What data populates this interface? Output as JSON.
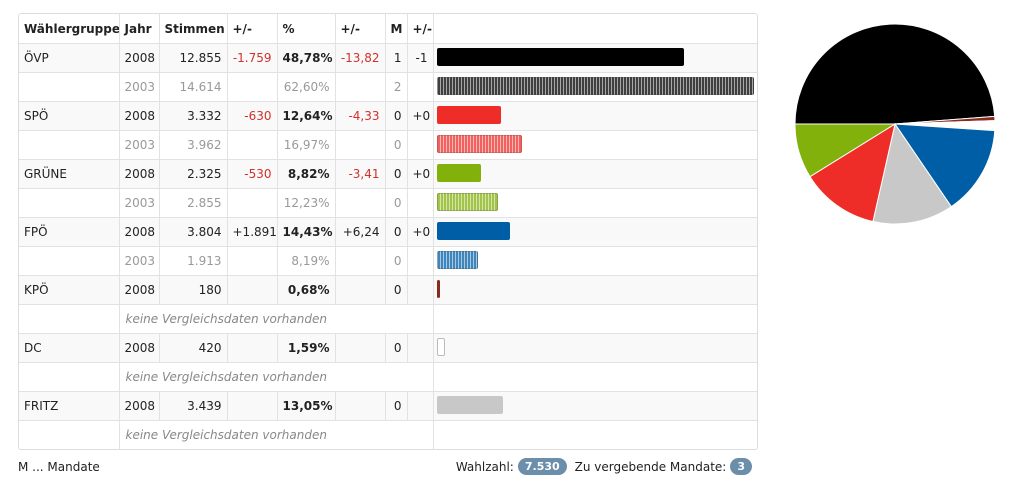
{
  "table": {
    "headers": [
      "Wählergruppe",
      "Jahr",
      "Stimmen",
      "+/-",
      "%",
      "+/-",
      "M",
      "+/-",
      ""
    ],
    "no_data_text": "keine Vergleichsdaten vorhanden"
  },
  "footer": {
    "legend": "M ... Mandate",
    "wahlzahl_label": "Wahlzahl:",
    "wahlzahl_value": "7.530",
    "mandate_label": "Zu vergebende Mandate:",
    "mandate_value": "3"
  },
  "chart_data": {
    "type": "bar",
    "bar_max_percent": 62.6,
    "parties": [
      {
        "name": "ÖVP",
        "color": "#000000",
        "current": {
          "year": "2008",
          "votes": "12.855",
          "votes_diff": "-1.759",
          "percent_label": "48,78%",
          "percent_diff": "-13,82",
          "seats": "1",
          "seats_diff": "-1",
          "percent": 48.78
        },
        "previous": {
          "year": "2003",
          "votes": "14.614",
          "percent_label": "62,60%",
          "seats": "2",
          "percent": 62.6
        }
      },
      {
        "name": "SPÖ",
        "color": "#ee2d28",
        "current": {
          "year": "2008",
          "votes": "3.332",
          "votes_diff": "-630",
          "percent_label": "12,64%",
          "percent_diff": "-4,33",
          "seats": "0",
          "seats_diff": "+0",
          "percent": 12.64
        },
        "previous": {
          "year": "2003",
          "votes": "3.962",
          "percent_label": "16,97%",
          "seats": "0",
          "percent": 16.97
        }
      },
      {
        "name": "GRÜNE",
        "color": "#83b10b",
        "current": {
          "year": "2008",
          "votes": "2.325",
          "votes_diff": "-530",
          "percent_label": "8,82%",
          "percent_diff": "-3,41",
          "seats": "0",
          "seats_diff": "+0",
          "percent": 8.82
        },
        "previous": {
          "year": "2003",
          "votes": "2.855",
          "percent_label": "12,23%",
          "seats": "0",
          "percent": 12.23
        }
      },
      {
        "name": "FPÖ",
        "color": "#005ea6",
        "current": {
          "year": "2008",
          "votes": "3.804",
          "votes_diff": "+1.891",
          "percent_label": "14,43%",
          "percent_diff": "+6,24",
          "seats": "0",
          "seats_diff": "+0",
          "percent": 14.43
        },
        "previous": {
          "year": "2003",
          "votes": "1.913",
          "percent_label": "8,19%",
          "seats": "0",
          "percent": 8.19
        }
      },
      {
        "name": "KPÖ",
        "color": "#8a2a1f",
        "current": {
          "year": "2008",
          "votes": "180",
          "votes_diff": "",
          "percent_label": "0,68%",
          "percent_diff": "",
          "seats": "0",
          "seats_diff": "",
          "percent": 0.68
        },
        "previous": null
      },
      {
        "name": "DC",
        "color": "#ffffff",
        "current": {
          "year": "2008",
          "votes": "420",
          "votes_diff": "",
          "percent_label": "1,59%",
          "percent_diff": "",
          "seats": "0",
          "seats_diff": "",
          "percent": 1.59
        },
        "previous": null
      },
      {
        "name": "FRITZ",
        "color": "#c8c8c8",
        "current": {
          "year": "2008",
          "votes": "3.439",
          "votes_diff": "",
          "percent_label": "13,05%",
          "percent_diff": "",
          "seats": "0",
          "seats_diff": "",
          "percent": 13.05
        },
        "previous": null
      }
    ],
    "pie": [
      {
        "name": "ÖVP",
        "value": 48.78,
        "color": "#000000"
      },
      {
        "name": "KPÖ",
        "value": 0.68,
        "color": "#8a2a1f"
      },
      {
        "name": "DC",
        "value": 1.59,
        "color": "#ffffff"
      },
      {
        "name": "FPÖ",
        "value": 14.43,
        "color": "#005ea6"
      },
      {
        "name": "FRITZ",
        "value": 13.05,
        "color": "#c8c8c8"
      },
      {
        "name": "SPÖ",
        "value": 12.64,
        "color": "#ee2d28"
      },
      {
        "name": "GRÜNE",
        "value": 8.82,
        "color": "#83b10b"
      }
    ]
  }
}
